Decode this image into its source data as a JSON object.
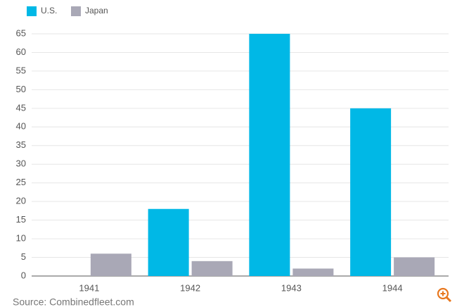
{
  "chart_data": {
    "type": "bar",
    "categories": [
      "1941",
      "1942",
      "1943",
      "1944"
    ],
    "series": [
      {
        "name": "U.S.",
        "color": "#00b8e6",
        "values": [
          0,
          18,
          65,
          45
        ]
      },
      {
        "name": "Japan",
        "color": "#a9a8b6",
        "values": [
          6,
          4,
          2,
          5
        ]
      }
    ],
    "ylim": [
      0,
      65
    ],
    "yticks": [
      0,
      5,
      10,
      15,
      20,
      25,
      30,
      35,
      40,
      45,
      50,
      55,
      60,
      65
    ],
    "grid": true,
    "source": "Source: Combinedfleet.com"
  }
}
